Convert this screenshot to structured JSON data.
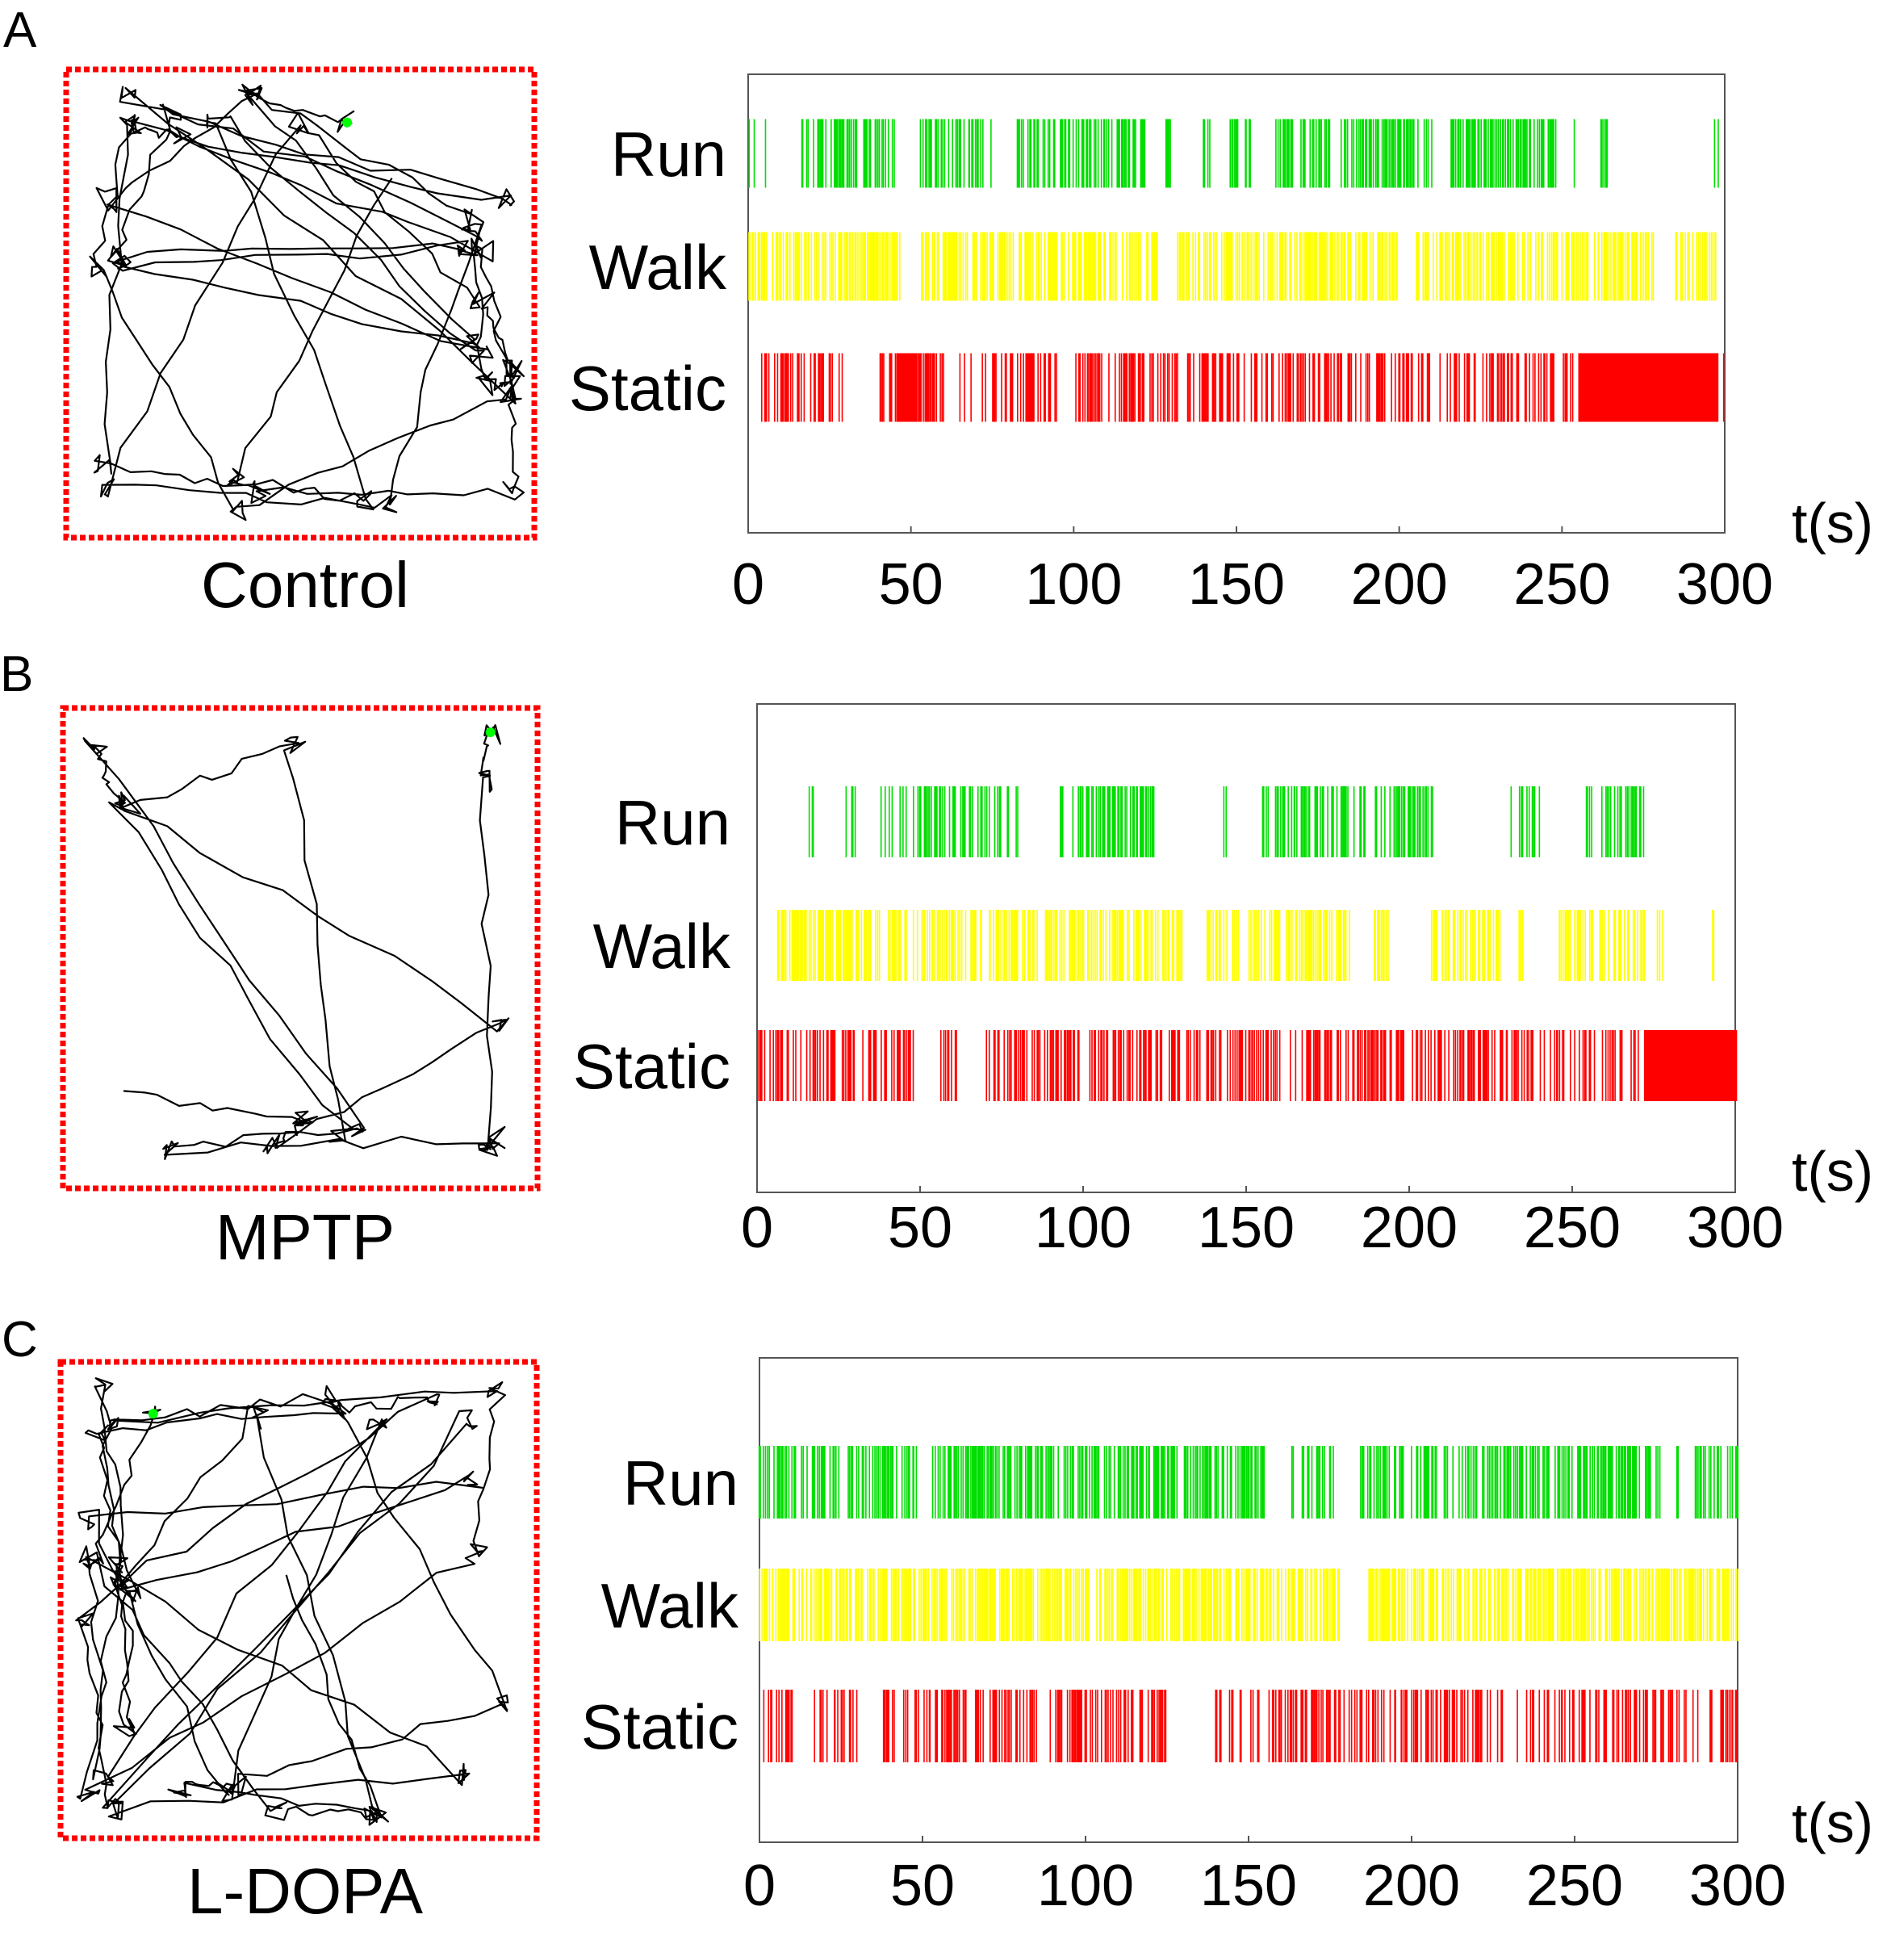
{
  "chart_data": [
    {
      "type": "event-raster",
      "panel": "A",
      "condition": "Control",
      "xlabel": "t(s)",
      "xlim": [
        0,
        300
      ],
      "xticks": [
        0,
        50,
        100,
        150,
        200,
        250,
        300
      ],
      "categories": [
        "Run",
        "Walk",
        "Static"
      ],
      "series": [
        {
          "name": "Run",
          "color": "#00dd00",
          "segments": [
            [
              0,
              2
            ],
            [
              5,
              6
            ],
            [
              15,
              45
            ],
            [
              52,
              75
            ],
            [
              82,
              122
            ],
            [
              128,
              130
            ],
            [
              140,
              142
            ],
            [
              148,
              155
            ],
            [
              162,
              210
            ],
            [
              216,
              248
            ],
            [
              253,
              255
            ],
            [
              262,
              264
            ],
            [
              296,
              298
            ]
          ],
          "density": 0.7
        },
        {
          "name": "Walk",
          "color": "#ffff00",
          "segments": [
            [
              0,
              47
            ],
            [
              53,
              298
            ]
          ],
          "gaps": [
            [
              126,
              130
            ],
            [
              200,
              205
            ],
            [
              278,
              285
            ]
          ],
          "density": 0.75
        },
        {
          "name": "Static",
          "color": "#ff0000",
          "segments": [
            [
              4,
              30
            ],
            [
              40,
              60
            ],
            [
              65,
              95
            ],
            [
              100,
              300
            ]
          ],
          "blocks": [
            [
              46,
              52
            ],
            [
              255,
              298
            ]
          ],
          "density": 0.6
        }
      ],
      "trajectory": {
        "arena_color": "#ff0000",
        "path_color": "#000000",
        "end_marker_color": "#00ff00"
      }
    },
    {
      "type": "event-raster",
      "panel": "B",
      "condition": "MPTP",
      "xlabel": "t(s)",
      "xlim": [
        0,
        300
      ],
      "xticks": [
        0,
        50,
        100,
        150,
        200,
        250,
        300
      ],
      "categories": [
        "Run",
        "Walk",
        "Static"
      ],
      "series": [
        {
          "name": "Run",
          "color": "#00dd00",
          "segments": [
            [
              16,
              18
            ],
            [
              27,
              30
            ],
            [
              38,
              80
            ],
            [
              93,
              122
            ],
            [
              143,
              144
            ],
            [
              155,
              207
            ],
            [
              231,
              241
            ],
            [
              254,
              272
            ]
          ],
          "density": 0.6
        },
        {
          "name": "Walk",
          "color": "#ffff00",
          "segments": [
            [
              6,
              130
            ],
            [
              138,
              182
            ],
            [
              188,
              194
            ],
            [
              208,
              208
            ],
            [
              206,
              228
            ],
            [
              233,
              235
            ],
            [
              246,
              272
            ],
            [
              276,
              278
            ],
            [
              293,
              294
            ]
          ],
          "density": 0.75
        },
        {
          "name": "Static",
          "color": "#ff0000",
          "segments": [
            [
              0,
              48
            ],
            [
              56,
              62
            ],
            [
              70,
              300
            ]
          ],
          "blocks": [
            [
              272,
              300
            ]
          ],
          "density": 0.65
        }
      ],
      "trajectory": {
        "arena_color": "#ff0000",
        "path_color": "#000000",
        "end_marker_color": "#00ff00"
      }
    },
    {
      "type": "event-raster",
      "panel": "C",
      "condition": "L-DOPA",
      "xlabel": "t(s)",
      "xlim": [
        0,
        300
      ],
      "xticks": [
        0,
        50,
        100,
        150,
        200,
        250,
        300
      ],
      "categories": [
        "Run",
        "Walk",
        "Static"
      ],
      "series": [
        {
          "name": "Run",
          "color": "#00dd00",
          "segments": [
            [
              0,
              48
            ],
            [
              53,
              155
            ],
            [
              163,
              176
            ],
            [
              184,
              276
            ],
            [
              281,
              283
            ],
            [
              287,
              300
            ]
          ],
          "density": 0.72
        },
        {
          "name": "Walk",
          "color": "#ffff00",
          "segments": [
            [
              0,
              178
            ],
            [
              185,
              300
            ]
          ],
          "density": 0.8
        },
        {
          "name": "Static",
          "color": "#ff0000",
          "segments": [
            [
              1,
              10
            ],
            [
              16,
              30
            ],
            [
              38,
              125
            ],
            [
              140,
              300
            ]
          ],
          "density": 0.55
        }
      ],
      "trajectory": {
        "arena_color": "#ff0000",
        "path_color": "#000000",
        "end_marker_color": "#00ff00"
      }
    }
  ]
}
